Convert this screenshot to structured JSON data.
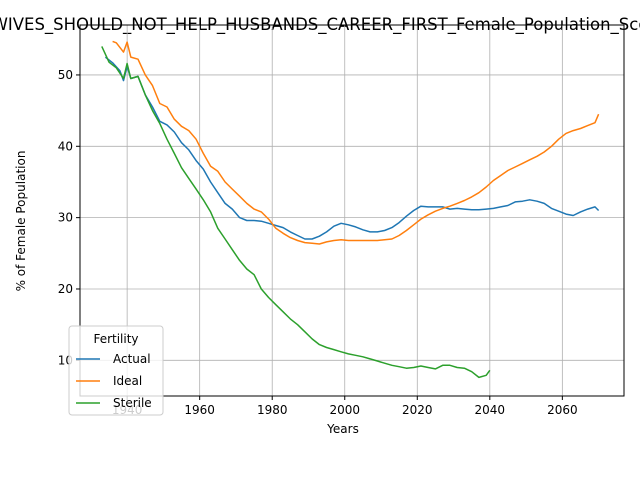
{
  "chart_data": {
    "type": "line",
    "title": "WIVES_SHOULD_NOT_HELP_HUSBANDS_CAREER_FIRST_Female_Population_Sco",
    "xlabel": "Years",
    "ylabel": "% of Female Population",
    "xlim": [
      1927,
      2077
    ],
    "ylim": [
      5,
      57
    ],
    "xticks": [
      1940,
      1960,
      1980,
      2000,
      2020,
      2040,
      2060
    ],
    "yticks": [
      10,
      20,
      30,
      40,
      50
    ],
    "grid": true,
    "legend": {
      "title": "Fertility",
      "position": "lower-left"
    },
    "series": [
      {
        "name": "Actual",
        "color": "#1f77b4",
        "x": [
          1934,
          1936,
          1938,
          1939,
          1940,
          1941,
          1943,
          1945,
          1947,
          1949,
          1951,
          1953,
          1955,
          1957,
          1959,
          1961,
          1963,
          1965,
          1967,
          1969,
          1971,
          1973,
          1975,
          1977,
          1979,
          1981,
          1983,
          1985,
          1987,
          1989,
          1991,
          1993,
          1995,
          1997,
          1999,
          2001,
          2003,
          2005,
          2007,
          2009,
          2011,
          2013,
          2015,
          2017,
          2019,
          2021,
          2023,
          2025,
          2027,
          2029,
          2031,
          2033,
          2035,
          2037,
          2039,
          2041,
          2043,
          2045,
          2047,
          2049,
          2051,
          2053,
          2055,
          2057,
          2059,
          2061,
          2063,
          2065,
          2067,
          2069,
          2070
        ],
        "y": [
          52.5,
          51.7,
          50.6,
          49.2,
          51.2,
          49.5,
          49.8,
          47.2,
          45.5,
          43.5,
          43.0,
          42.0,
          40.5,
          39.5,
          38.0,
          36.8,
          35.0,
          33.5,
          32.0,
          31.2,
          30.0,
          29.6,
          29.6,
          29.5,
          29.2,
          28.9,
          28.6,
          28.0,
          27.5,
          27.0,
          27.0,
          27.4,
          28.0,
          28.8,
          29.2,
          29.0,
          28.7,
          28.3,
          28.0,
          28.0,
          28.2,
          28.6,
          29.3,
          30.2,
          31.0,
          31.6,
          31.5,
          31.5,
          31.5,
          31.2,
          31.3,
          31.2,
          31.1,
          31.1,
          31.2,
          31.3,
          31.5,
          31.7,
          32.2,
          32.3,
          32.5,
          32.3,
          32.0,
          31.3,
          30.9,
          30.5,
          30.3,
          30.8,
          31.2,
          31.5,
          31.0
        ]
      },
      {
        "name": "Ideal",
        "color": "#ff7f0e",
        "x": [
          1936,
          1937,
          1939,
          1940,
          1941,
          1943,
          1945,
          1947,
          1949,
          1951,
          1953,
          1955,
          1957,
          1959,
          1961,
          1963,
          1965,
          1967,
          1969,
          1971,
          1973,
          1975,
          1977,
          1979,
          1981,
          1983,
          1985,
          1987,
          1989,
          1991,
          1993,
          1995,
          1997,
          1999,
          2001,
          2003,
          2005,
          2007,
          2009,
          2011,
          2013,
          2015,
          2017,
          2019,
          2021,
          2023,
          2025,
          2027,
          2029,
          2031,
          2033,
          2035,
          2037,
          2039,
          2041,
          2043,
          2045,
          2047,
          2049,
          2051,
          2053,
          2055,
          2057,
          2059,
          2061,
          2063,
          2065,
          2067,
          2069,
          2070
        ],
        "y": [
          54.7,
          54.5,
          53.2,
          54.6,
          52.5,
          52.2,
          50.0,
          48.5,
          46.0,
          45.5,
          43.8,
          42.8,
          42.2,
          41.0,
          39.0,
          37.2,
          36.5,
          35.0,
          34.0,
          33.0,
          32.0,
          31.2,
          30.8,
          29.8,
          28.5,
          27.8,
          27.2,
          26.8,
          26.5,
          26.4,
          26.3,
          26.6,
          26.8,
          26.9,
          26.8,
          26.8,
          26.8,
          26.8,
          26.8,
          26.9,
          27.0,
          27.5,
          28.2,
          29.0,
          29.8,
          30.4,
          30.9,
          31.3,
          31.6,
          32.0,
          32.4,
          32.9,
          33.5,
          34.3,
          35.2,
          35.9,
          36.6,
          37.1,
          37.6,
          38.1,
          38.6,
          39.2,
          40.0,
          41.0,
          41.8,
          42.2,
          42.5,
          42.9,
          43.3,
          44.5
        ]
      },
      {
        "name": "Sterile",
        "color": "#2ca02c",
        "x": [
          1933,
          1935,
          1937,
          1939,
          1940,
          1941,
          1943,
          1945,
          1947,
          1949,
          1951,
          1953,
          1955,
          1957,
          1959,
          1961,
          1963,
          1965,
          1967,
          1969,
          1971,
          1973,
          1975,
          1977,
          1979,
          1981,
          1983,
          1985,
          1987,
          1989,
          1991,
          1993,
          1995,
          1997,
          1999,
          2001,
          2003,
          2005,
          2007,
          2009,
          2011,
          2013,
          2015,
          2017,
          2019,
          2021,
          2023,
          2025,
          2027,
          2029,
          2031,
          2033,
          2035,
          2037,
          2039,
          2040
        ],
        "y": [
          54.0,
          51.8,
          51.0,
          49.5,
          51.6,
          49.5,
          49.8,
          47.2,
          45.0,
          43.2,
          41.0,
          39.0,
          37.0,
          35.5,
          34.0,
          32.5,
          30.8,
          28.5,
          27.0,
          25.5,
          24.0,
          22.8,
          22.0,
          20.0,
          18.8,
          17.8,
          16.8,
          15.8,
          15.0,
          14.0,
          13.0,
          12.2,
          11.8,
          11.5,
          11.2,
          10.9,
          10.7,
          10.5,
          10.2,
          9.9,
          9.6,
          9.3,
          9.1,
          8.9,
          9.0,
          9.2,
          9.0,
          8.8,
          9.3,
          9.3,
          9.0,
          8.9,
          8.4,
          7.6,
          7.9,
          8.6
        ]
      }
    ]
  }
}
